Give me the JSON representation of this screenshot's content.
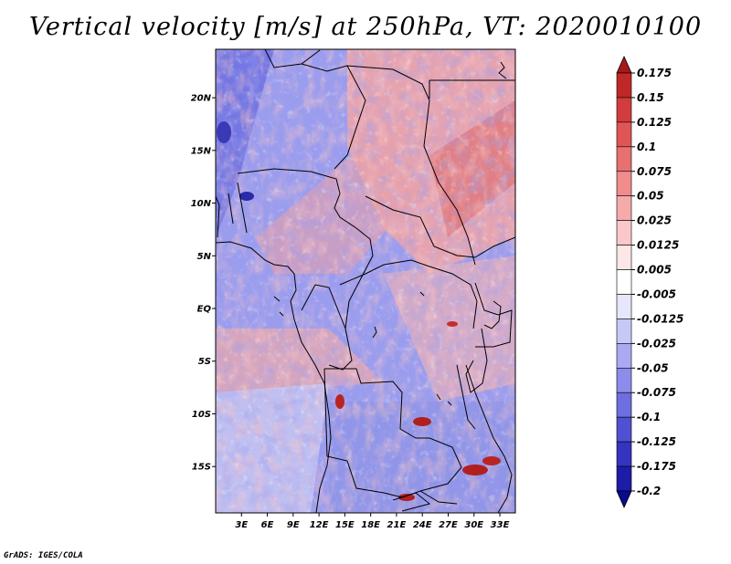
{
  "title": "Vertical velocity [m/s] at 250hPa, VT: 2020010100",
  "credit": "GrADS: IGES/COLA",
  "lat_ticks": [
    {
      "value": 20,
      "label": "20N"
    },
    {
      "value": 15,
      "label": "15N"
    },
    {
      "value": 10,
      "label": "10N"
    },
    {
      "value": 5,
      "label": "5N"
    },
    {
      "value": 0,
      "label": "EQ"
    },
    {
      "value": -5,
      "label": "5S"
    },
    {
      "value": -10,
      "label": "10S"
    },
    {
      "value": -15,
      "label": "15S"
    }
  ],
  "lon_ticks": [
    {
      "value": 3,
      "label": "3E"
    },
    {
      "value": 6,
      "label": "6E"
    },
    {
      "value": 9,
      "label": "9E"
    },
    {
      "value": 12,
      "label": "12E"
    },
    {
      "value": 15,
      "label": "15E"
    },
    {
      "value": 18,
      "label": "18E"
    },
    {
      "value": 21,
      "label": "21E"
    },
    {
      "value": 24,
      "label": "24E"
    },
    {
      "value": 27,
      "label": "27E"
    },
    {
      "value": 30,
      "label": "30E"
    },
    {
      "value": 33,
      "label": "33E"
    }
  ],
  "map_extent": {
    "lon": [
      0,
      34.8
    ],
    "lat": [
      -19.4,
      24.6
    ]
  },
  "colorbar": {
    "labels": [
      "0.175",
      "0.15",
      "0.125",
      "0.1",
      "0.075",
      "0.05",
      "0.025",
      "0.0125",
      "0.005",
      "-0.005",
      "-0.0125",
      "-0.025",
      "-0.05",
      "-0.075",
      "-0.1",
      "-0.125",
      "-0.175",
      "-0.2"
    ],
    "colors": [
      "#a81818",
      "#c02828",
      "#d23c3c",
      "#e05656",
      "#e87070",
      "#f08c8c",
      "#f6aaaa",
      "#fac8c8",
      "#fde6e6",
      "#ffffff",
      "#e6e6fc",
      "#c8c8f8",
      "#aaaaf2",
      "#8c8cea",
      "#6e6ee0",
      "#5050d2",
      "#3434c0",
      "#1c1ca8",
      "#0a0a8c"
    ]
  },
  "colors": {
    "frame": "#000000",
    "coast": "#000000"
  }
}
